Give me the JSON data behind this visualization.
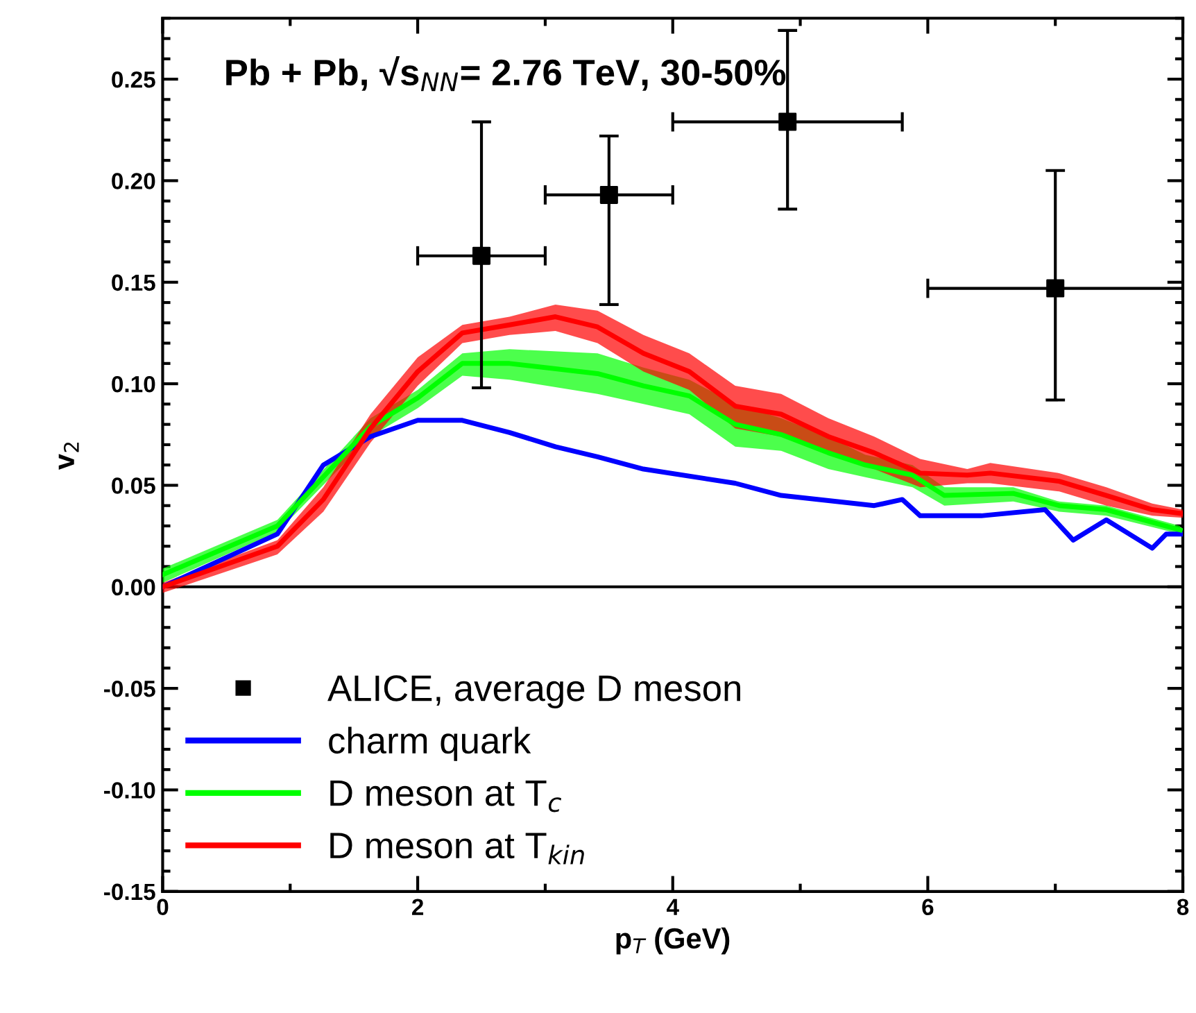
{
  "chart_data": {
    "type": "line",
    "title": "Pb + Pb, √s$_{NN}$= 2.76 TeV, 30-50%",
    "xlabel": "p$_{T}$ (GeV)",
    "ylabel": "v$_{2}$",
    "xlim": [
      0,
      8
    ],
    "xticks": [
      0,
      2,
      4,
      6,
      8
    ],
    "ylim": [
      -0.15,
      0.28
    ],
    "yticks": [
      {
        "value": -0.15,
        "label": "-0.15"
      },
      {
        "value": -0.1,
        "label": "-0.10"
      },
      {
        "value": -0.05,
        "label": "-0.05"
      },
      {
        "value": 0,
        "label": "0.00"
      },
      {
        "value": 0.05,
        "label": "0.05"
      },
      {
        "value": 0.1,
        "label": "0.10"
      },
      {
        "value": 0.15,
        "label": "0.15"
      },
      {
        "value": 0.2,
        "label": "0.20"
      },
      {
        "value": 0.25,
        "label": "0.25"
      }
    ],
    "grid": false,
    "legend": "bottom left",
    "ref_lines": [
      {
        "axis": "y",
        "value": 0,
        "color": "#000000"
      }
    ],
    "series": [
      {
        "name": "ALICE, average D meson",
        "type": "scatter",
        "marker": "square",
        "color": "#000000",
        "x": [
          2.5,
          3.5,
          4.9,
          7.0
        ],
        "values": [
          0.163,
          0.193,
          0.229,
          0.147
        ],
        "errors": [
          [
            0.098,
            0.229
          ],
          [
            0.139,
            0.222
          ],
          [
            0.186,
            0.274
          ],
          [
            0.092,
            0.205
          ]
        ],
        "xerrors": [
          [
            2.0,
            3.0
          ],
          [
            3.0,
            4.0
          ],
          [
            4.0,
            5.8
          ],
          [
            6.0,
            8.0
          ]
        ]
      },
      {
        "name": "charm quark",
        "type": "line",
        "color": "#0000ff",
        "x": [
          0,
          0.9,
          1.26,
          1.63,
          2.0,
          2.35,
          2.72,
          3.08,
          3.41,
          3.77,
          4.49,
          4.85,
          5.58,
          5.8,
          5.94,
          6.42,
          6.92,
          7.14,
          7.4,
          7.76,
          7.87,
          8.0
        ],
        "values": [
          0,
          0.026,
          0.06,
          0.074,
          0.082,
          0.082,
          0.076,
          0.069,
          0.064,
          0.058,
          0.051,
          0.045,
          0.04,
          0.043,
          0.035,
          0.035,
          0.038,
          0.023,
          0.033,
          0.019,
          0.026,
          0.026
        ]
      },
      {
        "name": "D meson at T$_{c}$",
        "type": "line",
        "color": "#00ff00",
        "x": [
          0,
          0.9,
          1.63,
          2.0,
          2.35,
          2.72,
          3.41,
          3.77,
          4.13,
          4.49,
          4.85,
          5.22,
          5.51,
          5.88,
          6.13,
          6.67,
          7.03,
          7.4,
          7.98
        ],
        "lower": [
          0.002,
          0.027,
          0.074,
          0.088,
          0.104,
          0.102,
          0.095,
          0.09,
          0.085,
          0.069,
          0.067,
          0.058,
          0.054,
          0.049,
          0.04,
          0.042,
          0.037,
          0.035,
          0.026
        ],
        "upper": [
          0.009,
          0.033,
          0.083,
          0.097,
          0.115,
          0.117,
          0.115,
          0.108,
          0.102,
          0.09,
          0.083,
          0.074,
          0.065,
          0.06,
          0.049,
          0.049,
          0.042,
          0.04,
          0.03
        ],
        "values": [
          0.006,
          0.03,
          0.079,
          0.093,
          0.11,
          0.11,
          0.105,
          0.099,
          0.094,
          0.08,
          0.075,
          0.066,
          0.06,
          0.055,
          0.045,
          0.046,
          0.04,
          0.038,
          0.028
        ]
      },
      {
        "name": "D meson at T$_{kin}$",
        "type": "line",
        "color": "#ff0000",
        "x": [
          0,
          0.9,
          1.26,
          1.63,
          2.0,
          2.35,
          2.72,
          3.08,
          3.41,
          3.77,
          4.13,
          4.49,
          4.85,
          5.22,
          5.58,
          5.94,
          6.31,
          6.49,
          7.03,
          7.4,
          7.76,
          8.0
        ],
        "lower": [
          -0.003,
          0.016,
          0.037,
          0.071,
          0.099,
          0.12,
          0.124,
          0.126,
          0.12,
          0.106,
          0.097,
          0.078,
          0.074,
          0.065,
          0.058,
          0.049,
          0.051,
          0.051,
          0.047,
          0.04,
          0.035,
          0.034
        ],
        "upper": [
          0.002,
          0.023,
          0.049,
          0.085,
          0.113,
          0.129,
          0.133,
          0.139,
          0.136,
          0.124,
          0.115,
          0.099,
          0.095,
          0.083,
          0.074,
          0.063,
          0.058,
          0.061,
          0.056,
          0.049,
          0.041,
          0.038
        ],
        "values": [
          0,
          0.02,
          0.043,
          0.078,
          0.106,
          0.125,
          0.129,
          0.133,
          0.128,
          0.115,
          0.106,
          0.089,
          0.085,
          0.074,
          0.066,
          0.056,
          0.055,
          0.056,
          0.052,
          0.045,
          0.038,
          0.036
        ]
      }
    ]
  }
}
